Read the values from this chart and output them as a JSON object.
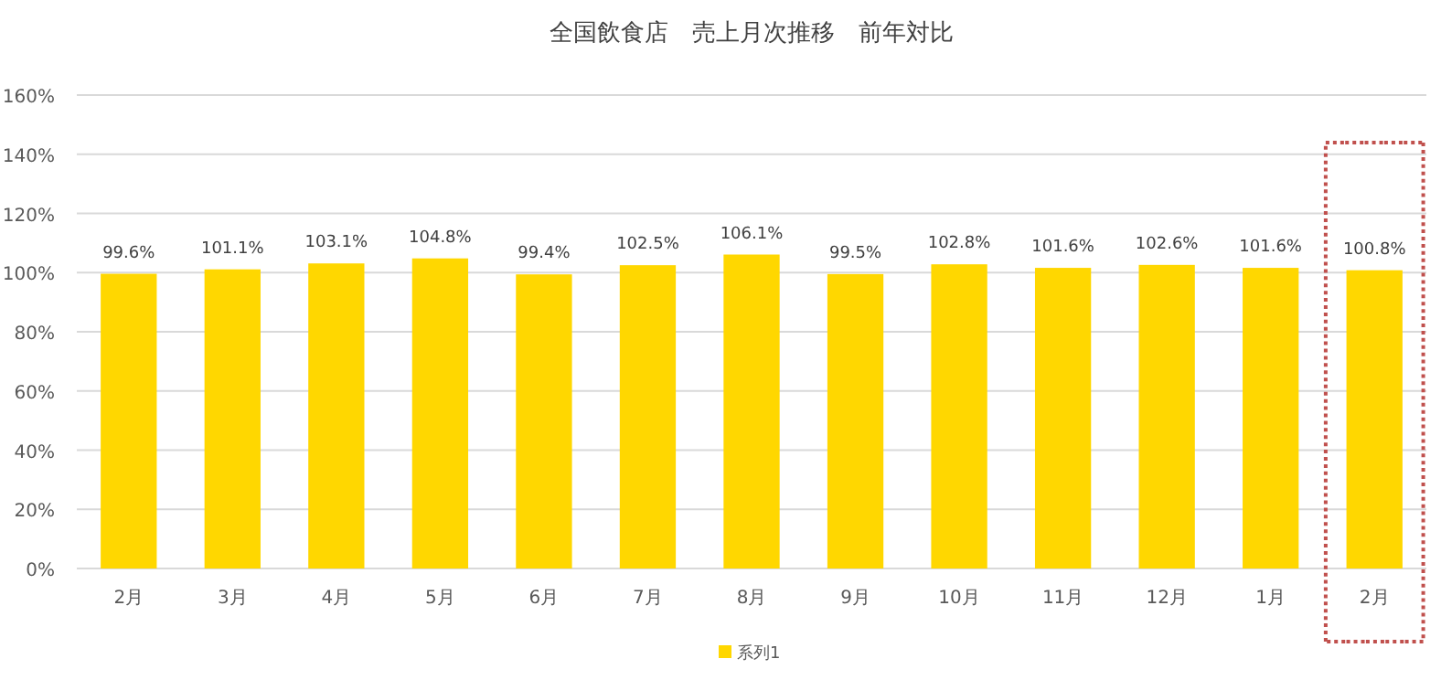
{
  "chart_data": {
    "type": "bar",
    "title": "全国飲食店　売上月次推移　前年対比",
    "categories": [
      "2月",
      "3月",
      "4月",
      "5月",
      "6月",
      "7月",
      "8月",
      "9月",
      "10月",
      "11月",
      "12月",
      "1月",
      "2月"
    ],
    "series": [
      {
        "name": "系列1",
        "color": "#ffd700",
        "values": [
          99.6,
          101.1,
          103.1,
          104.8,
          99.4,
          102.5,
          106.1,
          99.5,
          102.8,
          101.6,
          102.6,
          101.6,
          100.8
        ],
        "value_labels": [
          "99.6%",
          "101.1%",
          "103.1%",
          "104.8%",
          "99.4%",
          "102.5%",
          "106.1%",
          "99.5%",
          "102.8%",
          "101.6%",
          "102.6%",
          "101.6%",
          "100.8%"
        ]
      }
    ],
    "ylim": [
      0,
      160
    ],
    "yticks": [
      {
        "value": 0,
        "label": "0%"
      },
      {
        "value": 20,
        "label": "20%"
      },
      {
        "value": 40,
        "label": "40%"
      },
      {
        "value": 60,
        "label": "60%"
      },
      {
        "value": 80,
        "label": "80%"
      },
      {
        "value": 100,
        "label": "100%"
      },
      {
        "value": 120,
        "label": "120%"
      },
      {
        "value": 140,
        "label": "140%"
      },
      {
        "value": 160,
        "label": "160%"
      }
    ],
    "grid": "y",
    "legend": "bottom"
  }
}
